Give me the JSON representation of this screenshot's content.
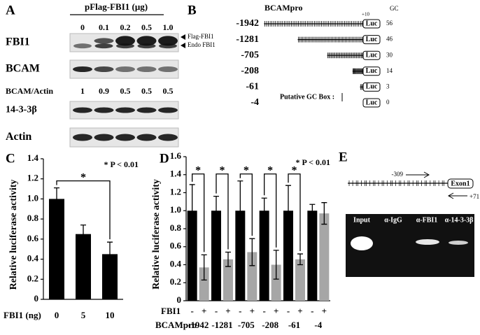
{
  "panel_a": {
    "label": "A",
    "treatment": "pFlag-FBI1 (μg)",
    "doses": [
      "0",
      "0.1",
      "0.2",
      "0.5",
      "1.0"
    ],
    "blots": [
      "FBI1",
      "BCAM",
      "14-3-3β",
      "Actin"
    ],
    "ratio_label": "BCAM/Actin",
    "ratios": [
      1,
      0.9,
      0.5,
      0.5,
      0.5
    ],
    "band_labels": [
      "Flag-FBI1",
      "Endo FBI1"
    ]
  },
  "panel_b": {
    "label": "B",
    "title": "BCAMpro",
    "position_label": "+10",
    "gc_header": "GC",
    "reporter": "Luc",
    "legend": "Putative GC Box :",
    "constructs": [
      {
        "name": "-1942",
        "gc": 56
      },
      {
        "name": "-1281",
        "gc": 46
      },
      {
        "name": "-705",
        "gc": 30
      },
      {
        "name": "-208",
        "gc": 14
      },
      {
        "name": "-61",
        "gc": 3
      },
      {
        "name": "-4",
        "gc": 0
      }
    ]
  },
  "panel_e": {
    "label": "E",
    "primer_fwd": "-309",
    "primer_rev": "+71",
    "exon": "Exon1",
    "lanes": [
      "Input",
      "α-IgG",
      "α-FBI1",
      "α-14-3-3β"
    ]
  },
  "chart_data": [
    {
      "type": "bar",
      "panel": "C",
      "ylabel": "Relative luciferase activity",
      "xlabel": "FBI1 (ng)",
      "annotation": "* P < 0.01",
      "categories": [
        "0",
        "5",
        "10"
      ],
      "series": [
        {
          "color": "#000000",
          "values": [
            1.0,
            0.65,
            0.45
          ],
          "errors": [
            0.11,
            0.09,
            0.12
          ]
        }
      ],
      "significance": [
        null,
        null,
        "*"
      ],
      "ylim": [
        0,
        1.4
      ],
      "yticks": [
        0,
        0.2,
        0.4,
        0.6,
        0.8,
        {
          "value": 1,
          "label": "1.0"
        },
        1.2,
        1.4
      ]
    },
    {
      "type": "bar",
      "panel": "D",
      "ylabel": "Relative luciferase activity",
      "xlabel": "BCAMpro",
      "series_label": "FBI1",
      "annotation": "* P < 0.01",
      "categories": [
        "-1942",
        "-1281",
        "-705",
        "-208",
        "-61",
        "-4"
      ],
      "series": [
        {
          "name": "-",
          "color": "#000000",
          "values": [
            1.0,
            1.0,
            1.0,
            1.0,
            1.0,
            1.0
          ],
          "errors": [
            0.29,
            0.16,
            0.33,
            0.14,
            0.28,
            0.07
          ]
        },
        {
          "name": "+",
          "color": "#a6a6a6",
          "values": [
            0.37,
            0.46,
            0.54,
            0.4,
            0.46,
            0.97
          ],
          "errors": [
            0.14,
            0.08,
            0.15,
            0.16,
            0.06,
            0.12
          ]
        }
      ],
      "significance": [
        "*",
        "*",
        "*",
        "*",
        "*",
        null
      ],
      "ylim": [
        0,
        1.6
      ],
      "yticks": [
        0,
        0.2,
        0.4,
        0.6,
        0.8,
        {
          "value": 1,
          "label": "1.0"
        },
        1.2,
        1.4,
        1.6
      ]
    }
  ]
}
